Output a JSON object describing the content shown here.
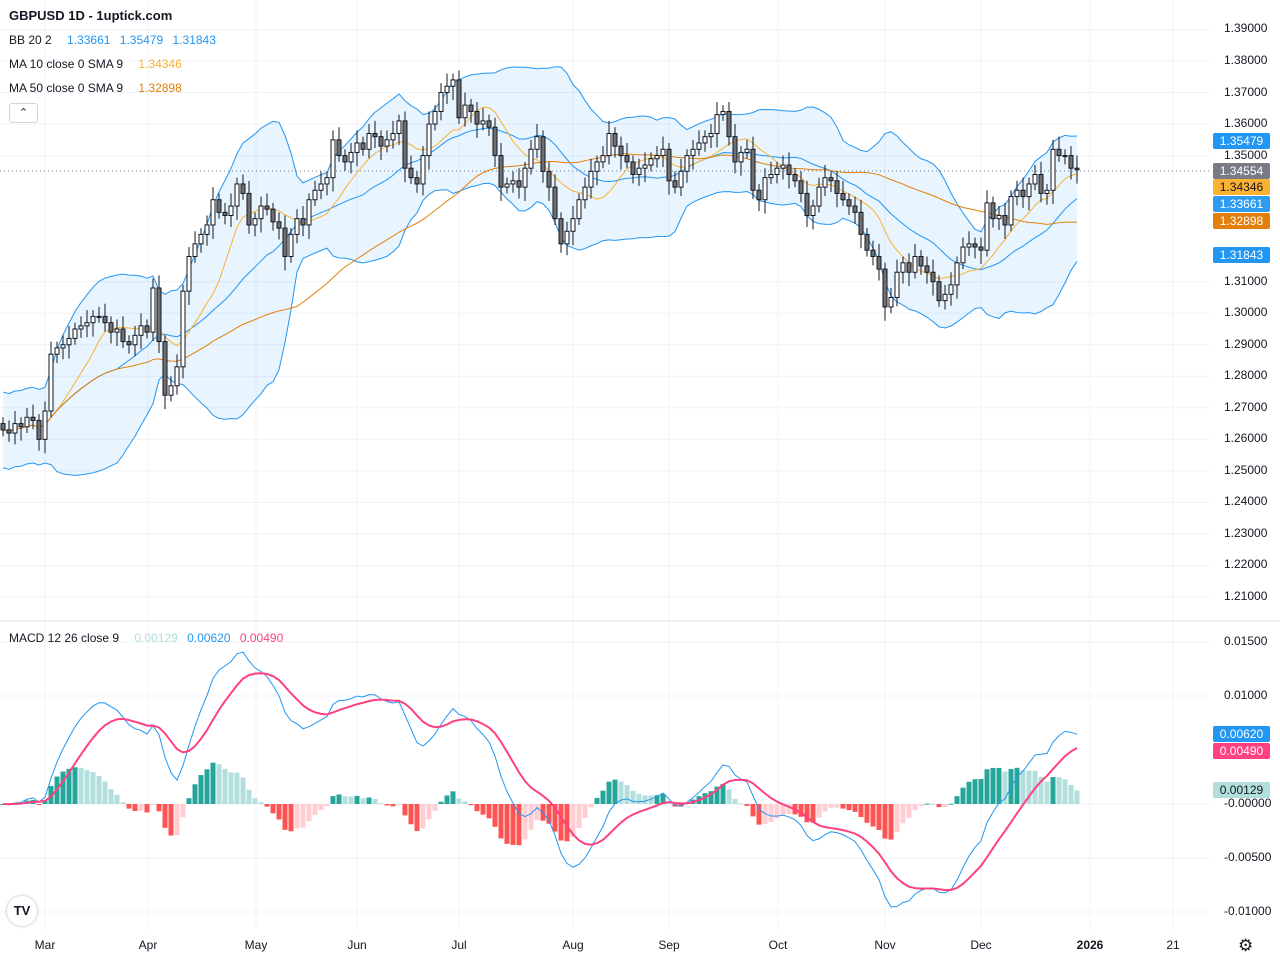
{
  "title": "GBPUSD 1D - 1uptick.com",
  "legend": {
    "bb": {
      "label": "BB 20 2",
      "basis": "1.33661",
      "upper": "1.35479",
      "lower": "1.31843"
    },
    "ma10": {
      "label": "MA 10 close 0 SMA 9",
      "value": "1.34346"
    },
    "ma50": {
      "label": "MA 50 close 0 SMA 9",
      "value": "1.32898"
    },
    "macd": {
      "label": "MACD 12 26 close 9",
      "hist": "0.00129",
      "macd": "0.00620",
      "signal": "0.00490"
    },
    "collapse_icon": "chevron-up"
  },
  "price_axis": [
    "1.39000",
    "1.38000",
    "1.37000",
    "1.36000",
    "1.35000",
    "1.31000",
    "1.30000",
    "1.29000",
    "1.28000",
    "1.27000",
    "1.26000",
    "1.25000",
    "1.24000",
    "1.23000",
    "1.22000",
    "1.21000"
  ],
  "price_tags": [
    {
      "value": "1.35479",
      "color": "#2196f3",
      "text_color": "#ffffff"
    },
    {
      "value": "1.34554",
      "color": "#787b86",
      "text_color": "#ffffff"
    },
    {
      "value": "1.34346",
      "color": "#f9b232",
      "text_color": "#131722"
    },
    {
      "value": "1.33661",
      "color": "#2d9cf0",
      "text_color": "#ffffff"
    },
    {
      "value": "1.32898",
      "color": "#e37f0b",
      "text_color": "#ffffff"
    },
    {
      "value": "1.31843",
      "color": "#2196f3",
      "text_color": "#ffffff"
    }
  ],
  "macd_axis": [
    "0.01500",
    "0.01000",
    "-0.00000",
    "-0.00500",
    "-0.01000"
  ],
  "macd_tags": [
    {
      "value": "0.00620",
      "color": "#2196f3",
      "text_color": "#ffffff"
    },
    {
      "value": "0.00490",
      "color": "#ff4081",
      "text_color": "#ffffff"
    },
    {
      "value": "0.00129",
      "color": "#b2dfdb",
      "text_color": "#131722"
    }
  ],
  "time_axis": [
    "Mar",
    "Apr",
    "May",
    "Jun",
    "Jul",
    "Aug",
    "Sep",
    "Oct",
    "Nov",
    "Dec",
    "2026",
    "21"
  ],
  "colors": {
    "up": "#ffffff",
    "down": "#707070",
    "bb": "#2196f3",
    "ma10": "#f9b232",
    "ma50": "#e37f0b",
    "macd": "#2196f3",
    "signal": "#ff4081",
    "hist_up_strong": "#26a69a",
    "hist_up_weak": "#b2dfdb",
    "hist_down_strong": "#ff5252",
    "hist_down_weak": "#ffcdd2"
  },
  "chart_data": {
    "type": "candlestick",
    "symbol": "GBPUSD",
    "interval": "1D",
    "ylim": [
      1.205,
      1.39
    ],
    "macd_ylim": [
      -0.0115,
      0.0165
    ],
    "current_price": 1.34554,
    "close": [
      1.263,
      1.262,
      1.265,
      1.264,
      1.267,
      1.266,
      1.26,
      1.269,
      1.287,
      1.289,
      1.29,
      1.292,
      1.295,
      1.296,
      1.297,
      1.299,
      1.299,
      1.297,
      1.294,
      1.295,
      1.291,
      1.29,
      1.293,
      1.296,
      1.294,
      1.308,
      1.291,
      1.274,
      1.277,
      1.283,
      1.307,
      1.318,
      1.322,
      1.325,
      1.328,
      1.336,
      1.332,
      1.331,
      1.334,
      1.341,
      1.338,
      1.328,
      1.33,
      1.334,
      1.333,
      1.329,
      1.327,
      1.318,
      1.325,
      1.33,
      1.328,
      1.336,
      1.339,
      1.341,
      1.343,
      1.355,
      1.35,
      1.348,
      1.351,
      1.354,
      1.352,
      1.357,
      1.356,
      1.353,
      1.355,
      1.357,
      1.361,
      1.346,
      1.343,
      1.341,
      1.35,
      1.36,
      1.364,
      1.37,
      1.372,
      1.374,
      1.362,
      1.366,
      1.364,
      1.36,
      1.361,
      1.359,
      1.35,
      1.34,
      1.341,
      1.342,
      1.34,
      1.346,
      1.352,
      1.356,
      1.345,
      1.34,
      1.33,
      1.322,
      1.326,
      1.33,
      1.336,
      1.34,
      1.345,
      1.348,
      1.35,
      1.357,
      1.353,
      1.35,
      1.348,
      1.344,
      1.346,
      1.347,
      1.349,
      1.35,
      1.352,
      1.342,
      1.34,
      1.345,
      1.35,
      1.352,
      1.354,
      1.356,
      1.357,
      1.363,
      1.364,
      1.356,
      1.348,
      1.351,
      1.352,
      1.339,
      1.336,
      1.343,
      1.344,
      1.346,
      1.347,
      1.344,
      1.342,
      1.338,
      1.331,
      1.334,
      1.34,
      1.343,
      1.342,
      1.338,
      1.336,
      1.334,
      1.332,
      1.325,
      1.32,
      1.318,
      1.314,
      1.302,
      1.305,
      1.313,
      1.316,
      1.313,
      1.318,
      1.315,
      1.313,
      1.31,
      1.304,
      1.306,
      1.309,
      1.316,
      1.321,
      1.322,
      1.321,
      1.32,
      1.335,
      1.33,
      1.331,
      1.328,
      1.337,
      1.339,
      1.337,
      1.341,
      1.344,
      1.338,
      1.339,
      1.352,
      1.35,
      1.35,
      1.346,
      1.3455
    ]
  }
}
